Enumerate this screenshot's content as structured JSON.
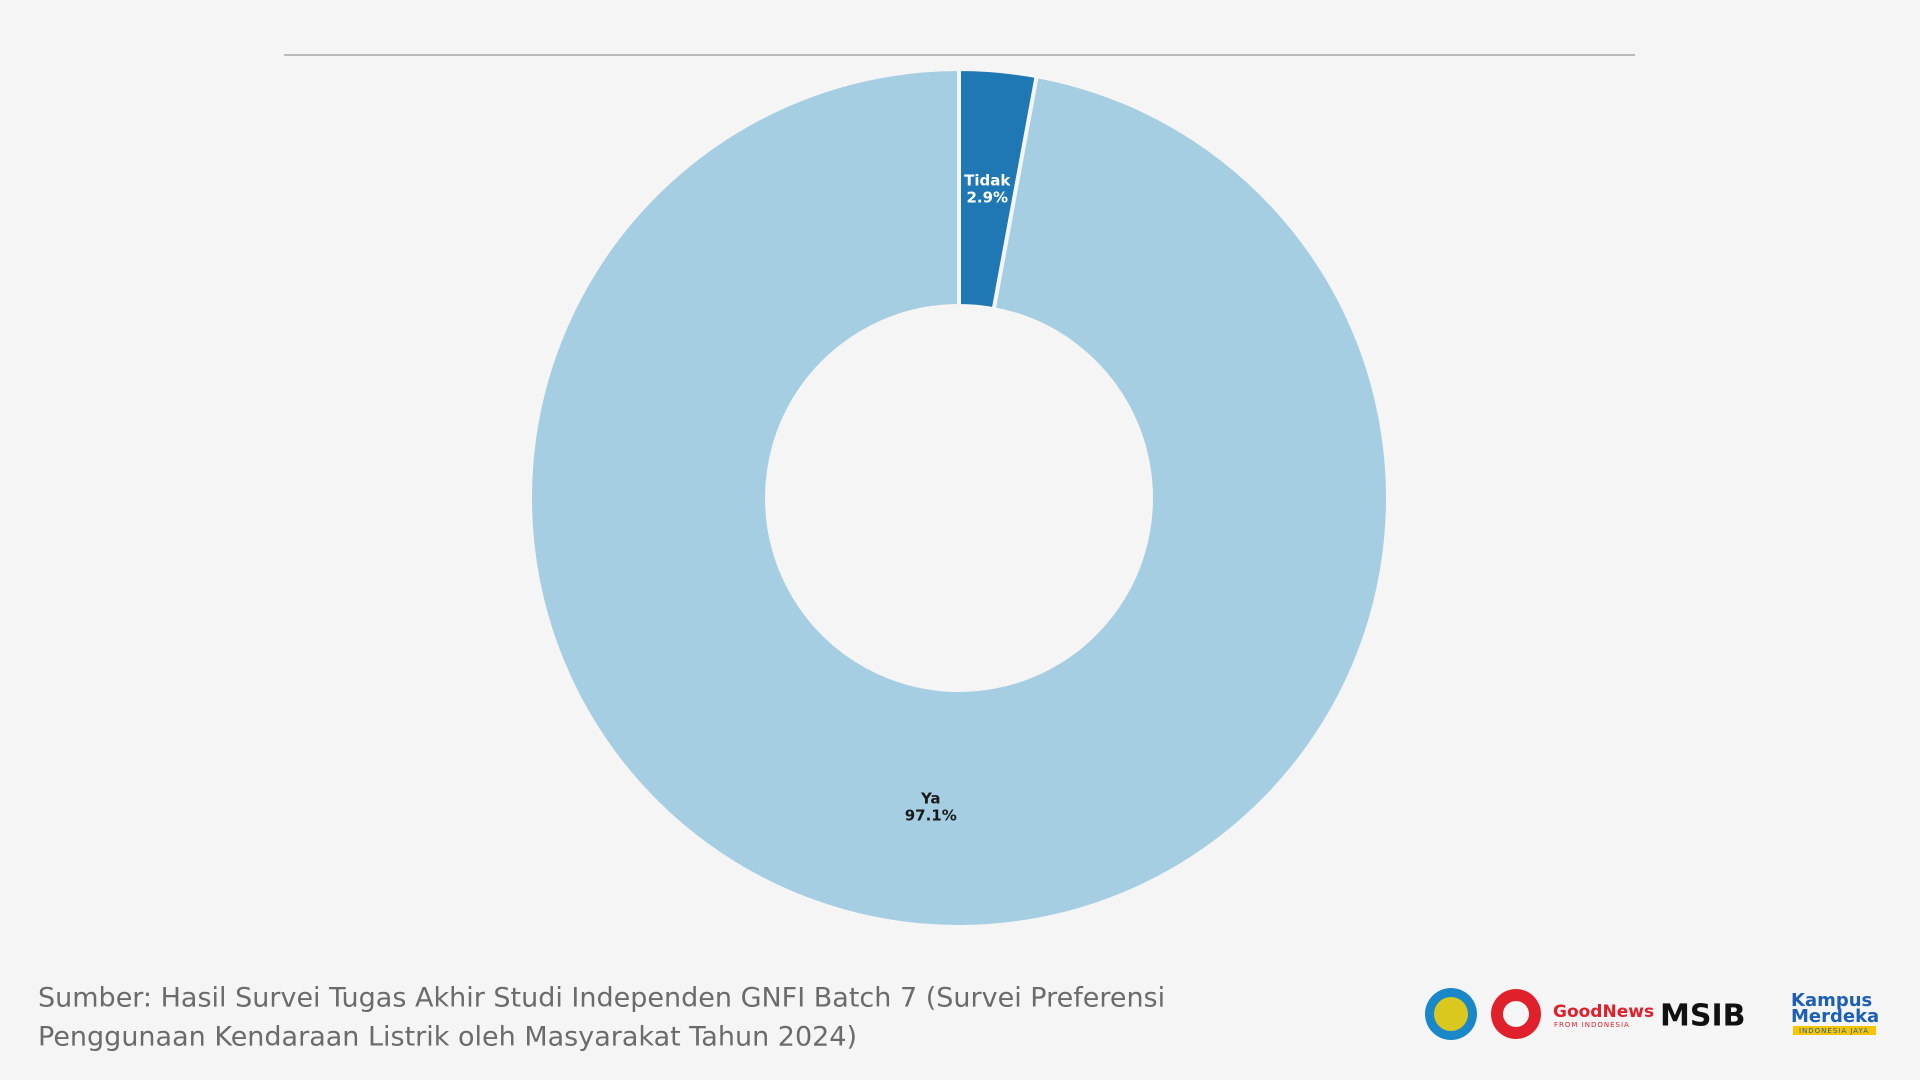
{
  "chart_data": {
    "type": "donut",
    "categories": [
      "Tidak",
      "Ya"
    ],
    "values": [
      2.9,
      97.1
    ],
    "value_labels": [
      "2.9%",
      "97.1%"
    ],
    "colors": [
      "#1f78b4",
      "#a6cee3"
    ],
    "label_colors": [
      "#ffffff",
      "#1a1a1a"
    ]
  },
  "source": {
    "line1": "Sumber: Hasil Survei Tugas Akhir Studi Independen GNFI Batch 7 (Survei Preferensi",
    "line2": "Penggunaan Kendaraan Listrik oleh Masyarakat Tahun 2024)"
  },
  "logos": {
    "goodnews": "GoodNews",
    "goodnews_tagline": "FROM INDONESIA",
    "msib": "MSIB",
    "kampus": "Kampus",
    "merdeka": "Merdeka",
    "jaya": "INDONESIA JAYA"
  }
}
